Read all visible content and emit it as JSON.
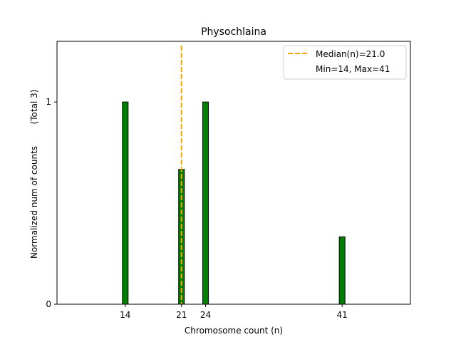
{
  "chart_data": {
    "type": "bar",
    "title": "Physochlaina",
    "xlabel": "Chromosome count (n)",
    "ylabel": "Normalized num of counts",
    "ylabel_note": "(Total 3)",
    "x": [
      14,
      21,
      24,
      41
    ],
    "values": [
      1.0,
      0.6667,
      1.0,
      0.3333
    ],
    "bar_color": "#008000",
    "xticks": [
      "14",
      "21",
      "24",
      "41"
    ],
    "yticks": [
      "0",
      "1"
    ],
    "xlim": [
      5.5,
      49.5
    ],
    "ylim": [
      0,
      1.3
    ],
    "median": {
      "value": 21.0,
      "label": "Median(n)=21.0",
      "color": "#ffa500"
    },
    "legend": {
      "position": "top-right",
      "entries": [
        "Median(n)=21.0",
        "Min=14, Max=41"
      ]
    },
    "grid": false
  }
}
